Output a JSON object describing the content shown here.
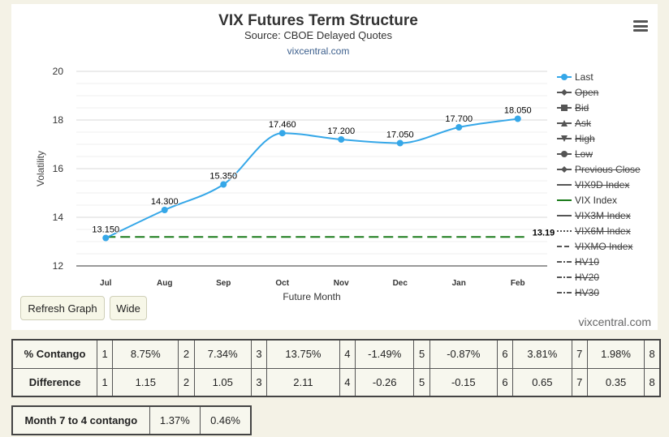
{
  "header": {
    "title": "VIX Futures Term Structure",
    "subtitle": "Source: CBOE Delayed Quotes",
    "credit_top": "vixcentral.com",
    "menu_icon": "hamburger-menu-icon"
  },
  "chart_data": {
    "type": "line",
    "title": "VIX Futures Term Structure",
    "subtitle": "Source: CBOE Delayed Quotes",
    "xlabel": "Future Month",
    "ylabel": "Volatility",
    "categories": [
      "Jul",
      "Aug",
      "Sep",
      "Oct",
      "Nov",
      "Dec",
      "Jan",
      "Feb"
    ],
    "ylim": [
      12,
      20
    ],
    "yticks": [
      12,
      14,
      16,
      18,
      20
    ],
    "grid": true,
    "legend_position": "right",
    "series": [
      {
        "name": "Last",
        "color": "#35a7e8",
        "values": [
          13.15,
          14.3,
          15.35,
          17.46,
          17.2,
          17.05,
          17.7,
          18.05
        ],
        "data_labels": [
          "13.150",
          "14.300",
          "15.350",
          "17.460",
          "17.200",
          "17.050",
          "17.700",
          "18.050"
        ]
      },
      {
        "name": "VIX Index",
        "color": "#1a7a1a",
        "style": "dashed",
        "value": 13.19,
        "data_label": "13.19"
      }
    ],
    "legend": [
      {
        "name": "Last",
        "symbol": "circle-line",
        "hidden": false,
        "color": "#35a7e8"
      },
      {
        "name": "Open",
        "symbol": "diamond-line",
        "hidden": true,
        "color": "#555555"
      },
      {
        "name": "Bid",
        "symbol": "square-line",
        "hidden": true,
        "color": "#555555"
      },
      {
        "name": "Ask",
        "symbol": "triangle-line",
        "hidden": true,
        "color": "#555555"
      },
      {
        "name": "High",
        "symbol": "triangle-down-line",
        "hidden": true,
        "color": "#555555"
      },
      {
        "name": "Low",
        "symbol": "circle-line",
        "hidden": true,
        "color": "#555555"
      },
      {
        "name": "Previous Close",
        "symbol": "diamond-line",
        "hidden": true,
        "color": "#555555"
      },
      {
        "name": "VIX9D Index",
        "symbol": "line",
        "hidden": true,
        "color": "#555555"
      },
      {
        "name": "VIX Index",
        "symbol": "line",
        "hidden": false,
        "color": "#1a7a1a"
      },
      {
        "name": "VIX3M Index",
        "symbol": "line",
        "hidden": true,
        "color": "#555555"
      },
      {
        "name": "VIX6M Index",
        "symbol": "dotted-line",
        "hidden": true,
        "color": "#555555"
      },
      {
        "name": "VIXMO Index",
        "symbol": "dashed-line",
        "hidden": true,
        "color": "#555555"
      },
      {
        "name": "HV10",
        "symbol": "dashdot-line",
        "hidden": true,
        "color": "#555555"
      },
      {
        "name": "HV20",
        "symbol": "dashdot-line",
        "hidden": true,
        "color": "#555555"
      },
      {
        "name": "HV30",
        "symbol": "dashdot-line",
        "hidden": true,
        "color": "#555555"
      }
    ]
  },
  "controls": {
    "refresh_label": "Refresh Graph",
    "wide_label": "Wide"
  },
  "credit_bottom": "vixcentral.com",
  "contango_table": {
    "rows": [
      {
        "label": "% Contango",
        "cells": [
          "1",
          "8.75%",
          "2",
          "7.34%",
          "3",
          "13.75%",
          "4",
          "-1.49%",
          "5",
          "-0.87%",
          "6",
          "3.81%",
          "7",
          "1.98%",
          "8"
        ]
      },
      {
        "label": "Difference",
        "cells": [
          "1",
          "1.15",
          "2",
          "1.05",
          "3",
          "2.11",
          "4",
          "-0.26",
          "5",
          "-0.15",
          "6",
          "0.65",
          "7",
          "0.35",
          "8"
        ]
      }
    ]
  },
  "summary_table": {
    "label": "Month 7 to 4 contango",
    "values": [
      "1.37%",
      "0.46%"
    ]
  }
}
